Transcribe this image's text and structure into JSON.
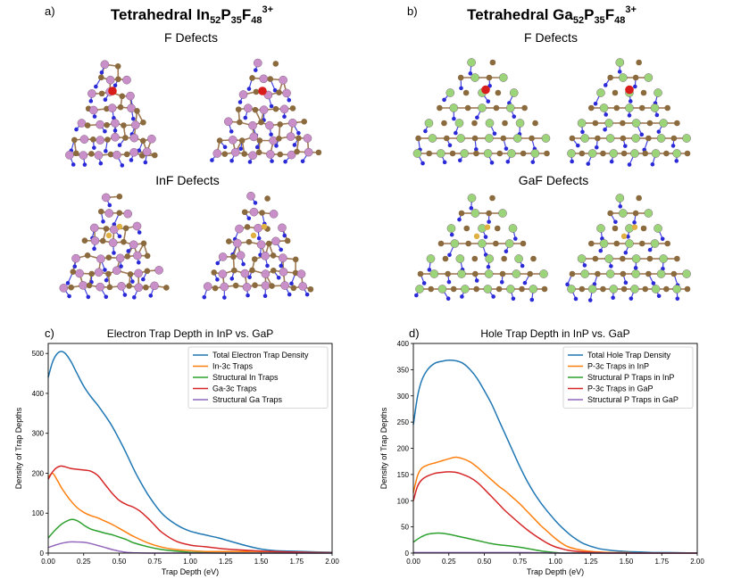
{
  "panels": {
    "a": {
      "label": "a)",
      "title_base": "Tetrahedral In",
      "sub1": "52",
      "p_base": "P",
      "sub2": "35",
      "f_base": "F",
      "sub3": "48",
      "sup": "3+",
      "sub_a": "F Defects",
      "sub_b": "InF Defects"
    },
    "b": {
      "label": "b)",
      "title_base": "Tetrahedral Ga",
      "sub1": "52",
      "p_base": "P",
      "sub2": "35",
      "f_base": "F",
      "sub3": "48",
      "sup": "3+",
      "sub_a": "F Defects",
      "sub_b": "GaF Defects"
    },
    "c": {
      "label": "c)"
    },
    "d": {
      "label": "d)"
    }
  },
  "colors": {
    "in_atom": "#c98fc9",
    "ga_atom": "#9cd47a",
    "p_atom": "#8b6a3e",
    "f_atom": "#2a2ad8",
    "defect_red": "#d81c1c",
    "defect_gold": "#e0b040"
  },
  "chart_data": [
    {
      "id": "c",
      "type": "line",
      "title": "Electron Trap Depth in InP vs. GaP",
      "xlabel": "Trap Depth (eV)",
      "ylabel": "Density of Trap Depths",
      "xlim": [
        0,
        2.0
      ],
      "ylim": [
        0,
        525
      ],
      "xticks": [
        "0.00",
        "0.25",
        "0.50",
        "0.75",
        "1.00",
        "1.25",
        "1.50",
        "1.75",
        "2.00"
      ],
      "yticks": [
        "0",
        "100",
        "200",
        "300",
        "400",
        "500"
      ],
      "legend_position": "top-right",
      "series": [
        {
          "name": "Total Electron Trap Density",
          "color": "#1f77b4",
          "x": [
            0,
            0.03,
            0.06,
            0.09,
            0.12,
            0.16,
            0.2,
            0.25,
            0.3,
            0.35,
            0.4,
            0.45,
            0.5,
            0.55,
            0.6,
            0.65,
            0.7,
            0.75,
            0.8,
            0.85,
            0.9,
            0.95,
            1.0,
            1.05,
            1.1,
            1.15,
            1.2,
            1.3,
            1.4,
            1.5,
            1.6,
            1.7,
            1.8,
            1.9,
            2.0
          ],
          "y": [
            440,
            478,
            498,
            505,
            500,
            480,
            452,
            418,
            392,
            370,
            345,
            318,
            285,
            250,
            212,
            178,
            148,
            122,
            100,
            84,
            72,
            62,
            55,
            50,
            46,
            42,
            38,
            28,
            18,
            10,
            6,
            5,
            4,
            3,
            2
          ]
        },
        {
          "name": "In-3c Traps",
          "color": "#ff7f0e",
          "x": [
            0,
            0.03,
            0.06,
            0.1,
            0.15,
            0.2,
            0.25,
            0.3,
            0.35,
            0.4,
            0.45,
            0.5,
            0.55,
            0.6,
            0.7,
            0.8,
            0.9,
            1.0,
            1.1,
            1.2,
            1.3,
            1.4,
            1.5,
            1.6,
            1.8,
            2.0
          ],
          "y": [
            190,
            200,
            185,
            160,
            135,
            115,
            102,
            94,
            88,
            80,
            72,
            62,
            52,
            42,
            26,
            15,
            9,
            6,
            4,
            4,
            4,
            4,
            4,
            3,
            2,
            1
          ]
        },
        {
          "name": "Structural In Traps",
          "color": "#2ca02c",
          "x": [
            0,
            0.05,
            0.1,
            0.15,
            0.18,
            0.22,
            0.26,
            0.3,
            0.35,
            0.4,
            0.45,
            0.5,
            0.55,
            0.6,
            0.7,
            0.8,
            0.9,
            1.0,
            1.1,
            1.2,
            1.4,
            1.6,
            2.0
          ],
          "y": [
            38,
            58,
            74,
            83,
            84,
            78,
            68,
            60,
            55,
            50,
            46,
            40,
            34,
            26,
            16,
            9,
            5,
            2,
            1,
            0,
            0,
            0,
            0
          ]
        },
        {
          "name": "Ga-3c Traps",
          "color": "#d62728",
          "x": [
            0,
            0.03,
            0.06,
            0.09,
            0.12,
            0.16,
            0.2,
            0.25,
            0.3,
            0.35,
            0.4,
            0.45,
            0.5,
            0.55,
            0.6,
            0.65,
            0.7,
            0.75,
            0.8,
            0.9,
            1.0,
            1.1,
            1.2,
            1.3,
            1.4,
            1.5,
            1.6,
            1.7,
            1.8,
            1.9,
            2.0
          ],
          "y": [
            185,
            203,
            214,
            218,
            216,
            212,
            210,
            208,
            205,
            194,
            172,
            150,
            132,
            122,
            115,
            104,
            88,
            70,
            52,
            30,
            20,
            16,
            12,
            9,
            7,
            5,
            4,
            3,
            2,
            1,
            1
          ]
        },
        {
          "name": "Structural Ga Traps",
          "color": "#9467bd",
          "x": [
            0,
            0.05,
            0.1,
            0.15,
            0.2,
            0.25,
            0.3,
            0.35,
            0.4,
            0.45,
            0.5,
            0.55,
            0.6,
            0.7,
            0.8,
            0.9,
            1.0,
            1.2,
            1.6,
            2.0
          ],
          "y": [
            14,
            20,
            25,
            28,
            28,
            27,
            24,
            19,
            14,
            9,
            5,
            2,
            1,
            0,
            0,
            0,
            0,
            0,
            0,
            0
          ]
        }
      ]
    },
    {
      "id": "d",
      "type": "line",
      "title": "Hole Trap Depth in InP vs. GaP",
      "xlabel": "Trap Depth (eV)",
      "ylabel": "Density of Trap Depths",
      "xlim": [
        0,
        2.0
      ],
      "ylim": [
        0,
        400
      ],
      "xticks": [
        "0.00",
        "0.25",
        "0.50",
        "0.75",
        "1.00",
        "1.25",
        "1.50",
        "1.75",
        "2.00"
      ],
      "yticks": [
        "0",
        "50",
        "100",
        "150",
        "200",
        "250",
        "300",
        "350",
        "400"
      ],
      "legend_position": "top-right",
      "series": [
        {
          "name": "Total Hole Trap Density",
          "color": "#1f77b4",
          "x": [
            0,
            0.03,
            0.06,
            0.1,
            0.15,
            0.2,
            0.25,
            0.3,
            0.35,
            0.4,
            0.45,
            0.5,
            0.55,
            0.6,
            0.65,
            0.7,
            0.75,
            0.8,
            0.85,
            0.9,
            0.95,
            1.0,
            1.05,
            1.1,
            1.15,
            1.2,
            1.3,
            1.4,
            1.5,
            1.6,
            1.7,
            1.8,
            2.0
          ],
          "y": [
            245,
            300,
            330,
            350,
            362,
            366,
            368,
            367,
            362,
            350,
            333,
            310,
            285,
            255,
            225,
            195,
            165,
            138,
            115,
            95,
            78,
            62,
            48,
            36,
            26,
            18,
            9,
            5,
            3,
            2,
            1,
            1,
            0
          ]
        },
        {
          "name": "P-3c Traps in InP",
          "color": "#ff7f0e",
          "x": [
            0,
            0.03,
            0.06,
            0.1,
            0.15,
            0.2,
            0.25,
            0.3,
            0.35,
            0.4,
            0.45,
            0.5,
            0.55,
            0.6,
            0.65,
            0.7,
            0.75,
            0.8,
            0.85,
            0.9,
            0.95,
            1.0,
            1.05,
            1.1,
            1.2,
            1.3,
            1.4,
            1.5,
            1.6,
            1.7,
            1.8,
            2.0
          ],
          "y": [
            115,
            148,
            162,
            168,
            172,
            176,
            180,
            183,
            180,
            174,
            164,
            152,
            140,
            128,
            118,
            106,
            94,
            80,
            66,
            52,
            40,
            28,
            18,
            11,
            5,
            2,
            1,
            1,
            0,
            0,
            0,
            0
          ]
        },
        {
          "name": "Structural P Traps in InP",
          "color": "#2ca02c",
          "x": [
            0,
            0.05,
            0.1,
            0.15,
            0.2,
            0.25,
            0.3,
            0.35,
            0.4,
            0.45,
            0.5,
            0.55,
            0.6,
            0.7,
            0.8,
            0.9,
            1.0,
            1.05,
            1.1,
            1.2,
            1.4,
            1.6,
            2.0
          ],
          "y": [
            21,
            30,
            36,
            38,
            38,
            36,
            33,
            30,
            27,
            24,
            21,
            18,
            16,
            13,
            9,
            4,
            1,
            0,
            0,
            0,
            0,
            0,
            0
          ]
        },
        {
          "name": "P-3c Traps in GaP",
          "color": "#d62728",
          "x": [
            0,
            0.03,
            0.06,
            0.1,
            0.15,
            0.2,
            0.25,
            0.3,
            0.35,
            0.4,
            0.45,
            0.5,
            0.55,
            0.6,
            0.65,
            0.7,
            0.75,
            0.8,
            0.85,
            0.9,
            0.95,
            1.0,
            1.05,
            1.1,
            1.2,
            1.3,
            1.4,
            1.6,
            1.8,
            2.0
          ],
          "y": [
            100,
            128,
            140,
            147,
            152,
            154,
            155,
            154,
            150,
            144,
            135,
            122,
            108,
            94,
            80,
            68,
            56,
            45,
            35,
            26,
            18,
            12,
            8,
            5,
            2,
            1,
            0,
            0,
            0,
            0
          ]
        },
        {
          "name": "Structural P Traps in GaP",
          "color": "#9467bd",
          "x": [
            0,
            0.2,
            0.4,
            0.6,
            0.8,
            1.0,
            1.2,
            1.4,
            1.6,
            1.8,
            2.0
          ],
          "y": [
            1,
            1,
            1,
            1,
            1,
            0,
            0,
            0,
            0,
            0,
            0
          ]
        }
      ]
    }
  ]
}
